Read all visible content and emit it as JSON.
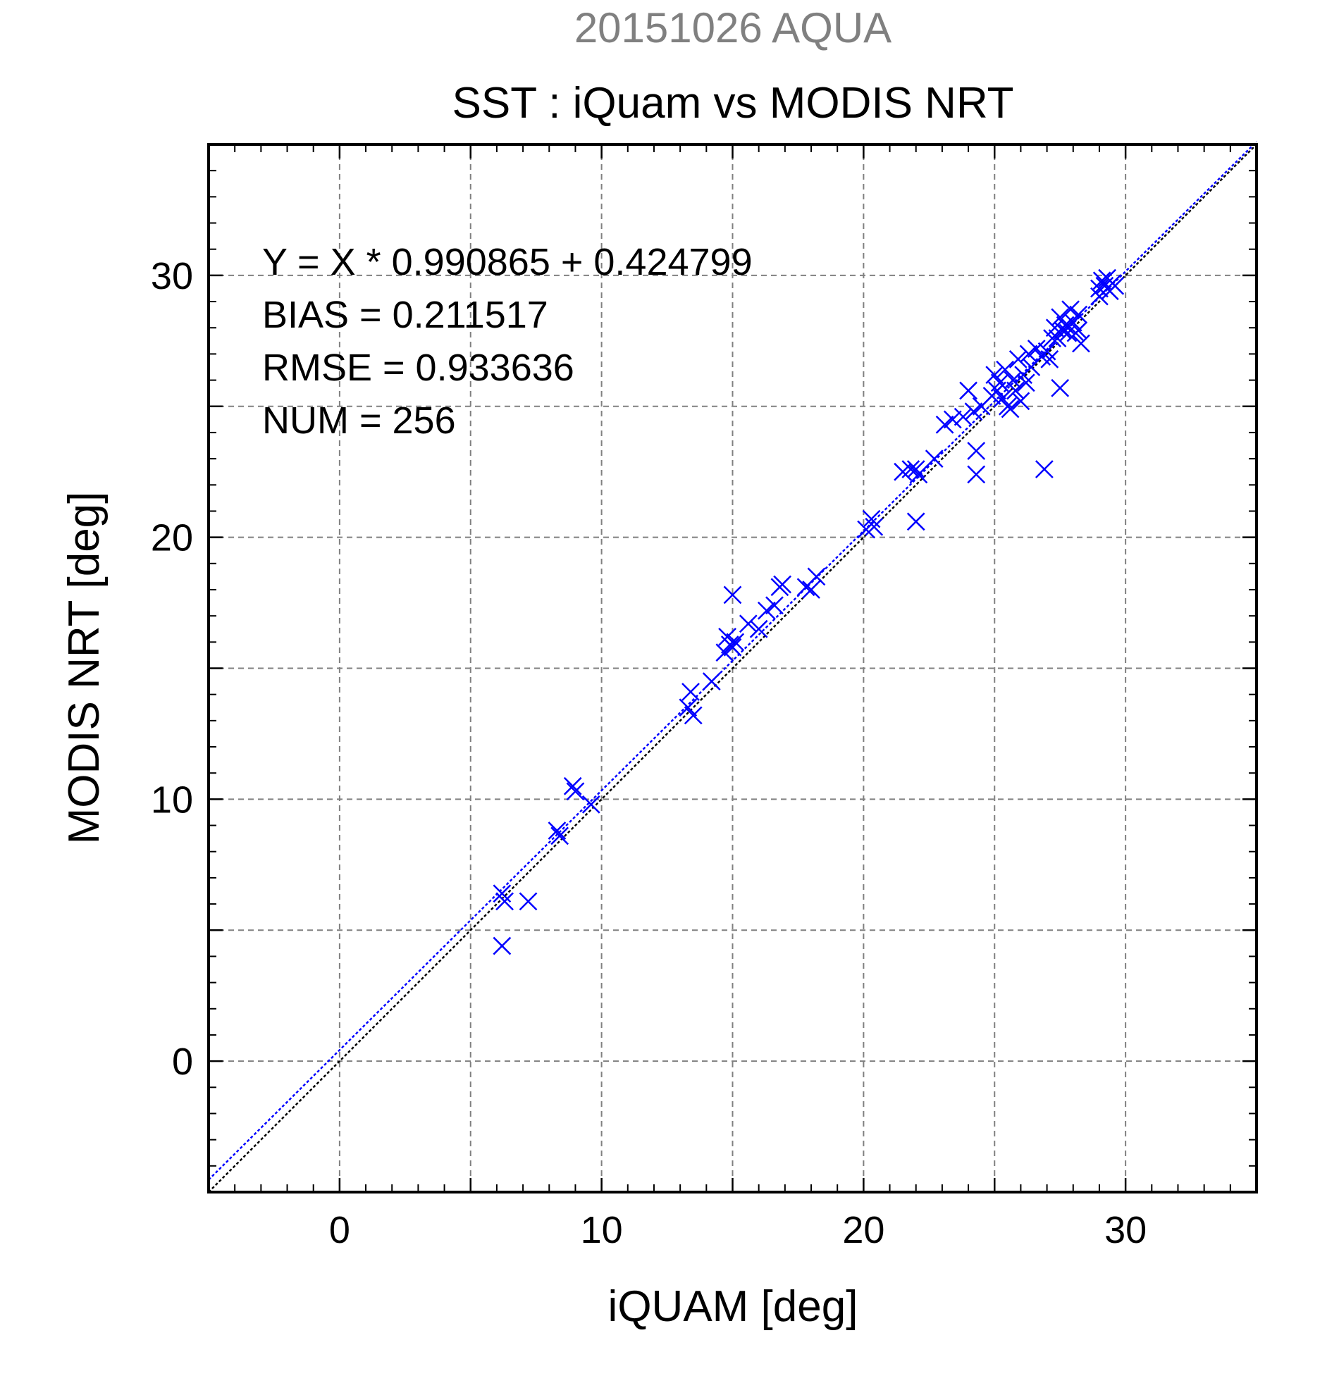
{
  "chart_data": {
    "type": "scatter",
    "subtitle": "20151026 AQUA",
    "title": "SST : iQuam vs MODIS NRT",
    "xlabel": "iQUAM [deg]",
    "ylabel": "MODIS NRT [deg]",
    "xlim": [
      -5,
      35
    ],
    "ylim": [
      -5,
      35
    ],
    "xticks": [
      0,
      10,
      20,
      30
    ],
    "yticks": [
      0,
      10,
      20,
      30
    ],
    "grid": true,
    "stats": [
      "Y = X * 0.990865 + 0.424799",
      "BIAS = 0.211517",
      "RMSE = 0.933636",
      "NUM = 256"
    ],
    "regression": {
      "slope": 0.990865,
      "intercept": 0.424799
    },
    "colors": {
      "points": "#0000ff",
      "fit_line": "#0000ff",
      "identity_line": "#000000",
      "grid": "#808080",
      "subtitle": "#808080"
    },
    "series": [
      {
        "marker": "x",
        "points": [
          [
            6.2,
            6.4
          ],
          [
            6.3,
            6.1
          ],
          [
            6.2,
            4.4
          ],
          [
            7.2,
            6.1
          ],
          [
            8.3,
            8.8
          ],
          [
            8.4,
            8.6
          ],
          [
            8.9,
            10.5
          ],
          [
            9.0,
            10.3
          ],
          [
            9.6,
            9.8
          ],
          [
            13.3,
            13.5
          ],
          [
            13.4,
            14.1
          ],
          [
            13.5,
            13.2
          ],
          [
            14.2,
            14.5
          ],
          [
            14.7,
            15.6
          ],
          [
            14.8,
            16.2
          ],
          [
            14.9,
            15.9
          ],
          [
            15.0,
            15.8
          ],
          [
            15.1,
            16.0
          ],
          [
            15.0,
            17.8
          ],
          [
            15.6,
            16.7
          ],
          [
            16.0,
            16.5
          ],
          [
            16.3,
            17.2
          ],
          [
            16.6,
            17.4
          ],
          [
            16.8,
            18.1
          ],
          [
            16.9,
            18.2
          ],
          [
            17.8,
            18.1
          ],
          [
            18.0,
            18.0
          ],
          [
            18.2,
            18.5
          ],
          [
            20.1,
            20.3
          ],
          [
            20.3,
            20.7
          ],
          [
            20.4,
            20.4
          ],
          [
            21.5,
            22.5
          ],
          [
            21.8,
            22.6
          ],
          [
            22.0,
            22.6
          ],
          [
            22.1,
            22.4
          ],
          [
            22.0,
            20.6
          ],
          [
            22.7,
            23.0
          ],
          [
            23.1,
            24.3
          ],
          [
            23.4,
            24.5
          ],
          [
            23.8,
            24.6
          ],
          [
            24.0,
            25.6
          ],
          [
            24.2,
            24.8
          ],
          [
            24.3,
            23.3
          ],
          [
            24.3,
            22.4
          ],
          [
            24.5,
            25.0
          ],
          [
            24.9,
            25.4
          ],
          [
            25.0,
            26.2
          ],
          [
            25.1,
            25.6
          ],
          [
            25.2,
            25.9
          ],
          [
            25.3,
            25.3
          ],
          [
            25.4,
            26.4
          ],
          [
            25.5,
            25.0
          ],
          [
            25.6,
            24.9
          ],
          [
            25.7,
            26.0
          ],
          [
            25.8,
            25.6
          ],
          [
            25.9,
            26.8
          ],
          [
            26.0,
            25.2
          ],
          [
            26.1,
            26.2
          ],
          [
            26.2,
            25.9
          ],
          [
            26.3,
            27.0
          ],
          [
            26.4,
            26.5
          ],
          [
            26.6,
            27.2
          ],
          [
            26.8,
            26.9
          ],
          [
            26.9,
            22.6
          ],
          [
            27.0,
            27.1
          ],
          [
            27.1,
            26.8
          ],
          [
            27.2,
            27.6
          ],
          [
            27.3,
            28.0
          ],
          [
            27.4,
            27.6
          ],
          [
            27.5,
            28.4
          ],
          [
            27.6,
            27.9
          ],
          [
            27.7,
            28.1
          ],
          [
            27.5,
            25.7
          ],
          [
            27.8,
            27.8
          ],
          [
            27.9,
            28.7
          ],
          [
            28.0,
            28.2
          ],
          [
            28.1,
            27.8
          ],
          [
            28.2,
            28.5
          ],
          [
            28.3,
            27.4
          ],
          [
            28.2,
            27.9
          ],
          [
            29.0,
            29.5
          ],
          [
            29.1,
            29.8
          ],
          [
            29.2,
            29.6
          ],
          [
            29.3,
            29.9
          ],
          [
            29.4,
            29.4
          ],
          [
            29.5,
            29.7
          ],
          [
            29.6,
            29.6
          ],
          [
            29.0,
            29.2
          ]
        ]
      }
    ]
  }
}
